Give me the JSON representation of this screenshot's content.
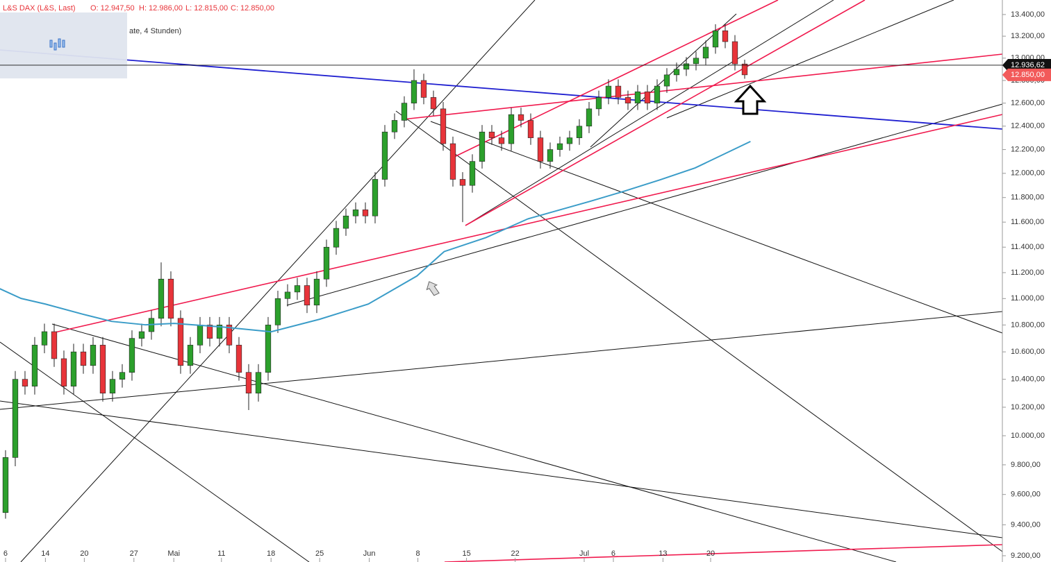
{
  "chart_data": {
    "type": "candlestick",
    "title": "L&S DAX (L&S, Last)",
    "ohlc_header": [
      "O: 12.947,50",
      "H: 12.986,00",
      "L: 12.815,00",
      "C: 12.850,00"
    ],
    "subtitle": "ate, 4 Stunden)",
    "log_scale": true,
    "ylim": [
      9160,
      13536
    ],
    "xlim": [
      -0.57,
      102.5
    ],
    "yticks": [
      {
        "value": 9200,
        "label": "9.200,00"
      },
      {
        "value": 9400,
        "label": "9.400,00"
      },
      {
        "value": 9600,
        "label": "9.600,00"
      },
      {
        "value": 9800,
        "label": "9.800,00"
      },
      {
        "value": 10000,
        "label": "10.000,00"
      },
      {
        "value": 10200,
        "label": "10.200,00"
      },
      {
        "value": 10400,
        "label": "10.400,00"
      },
      {
        "value": 10600,
        "label": "10.600,00"
      },
      {
        "value": 10800,
        "label": "10.800,00"
      },
      {
        "value": 11000,
        "label": "11.000,00"
      },
      {
        "value": 11200,
        "label": "11.200,00"
      },
      {
        "value": 11400,
        "label": "11.400,00"
      },
      {
        "value": 11600,
        "label": "11.600,00"
      },
      {
        "value": 11800,
        "label": "11.800,00"
      },
      {
        "value": 12000,
        "label": "12.000,00"
      },
      {
        "value": 12200,
        "label": "12.200,00"
      },
      {
        "value": 12400,
        "label": "12.400,00"
      },
      {
        "value": 12600,
        "label": "12.600,00"
      },
      {
        "value": 12800,
        "label": "12.800,00"
      },
      {
        "value": 13000,
        "label": "13.000,00"
      },
      {
        "value": 13200,
        "label": "13.200,00"
      },
      {
        "value": 13400,
        "label": "13.400,00"
      }
    ],
    "xticks": [
      {
        "value": 0,
        "label": "6"
      },
      {
        "value": 4.1,
        "label": "14"
      },
      {
        "value": 8.1,
        "label": "20"
      },
      {
        "value": 13.2,
        "label": "27"
      },
      {
        "value": 17.3,
        "label": "Mai"
      },
      {
        "value": 22.2,
        "label": "11"
      },
      {
        "value": 27.3,
        "label": "18"
      },
      {
        "value": 32.3,
        "label": "25"
      },
      {
        "value": 37.4,
        "label": "Jun"
      },
      {
        "value": 42.4,
        "label": "8"
      },
      {
        "value": 47.4,
        "label": "15"
      },
      {
        "value": 52.4,
        "label": "22"
      },
      {
        "value": 59.5,
        "label": "Jul"
      },
      {
        "value": 62.5,
        "label": "6"
      },
      {
        "value": 67.6,
        "label": "13"
      },
      {
        "value": 72.5,
        "label": "20"
      }
    ],
    "up_color": "#2ca02c",
    "down_color": "#e8343a",
    "candles": [
      [
        9480,
        9900,
        9440,
        9850
      ],
      [
        9850,
        10460,
        9790,
        10400
      ],
      [
        10400,
        10460,
        10290,
        10350
      ],
      [
        10350,
        10710,
        10290,
        10650
      ],
      [
        10650,
        10810,
        10590,
        10750
      ],
      [
        10750,
        10810,
        10490,
        10550
      ],
      [
        10550,
        10610,
        10290,
        10350
      ],
      [
        10350,
        10660,
        10290,
        10600
      ],
      [
        10600,
        10660,
        10440,
        10500
      ],
      [
        10500,
        10710,
        10440,
        10650
      ],
      [
        10650,
        10710,
        10240,
        10300
      ],
      [
        10300,
        10460,
        10240,
        10400
      ],
      [
        10400,
        10510,
        10340,
        10450
      ],
      [
        10450,
        10760,
        10390,
        10700
      ],
      [
        10700,
        10810,
        10640,
        10750
      ],
      [
        10750,
        10910,
        10690,
        10850
      ],
      [
        10850,
        11280,
        10790,
        11150
      ],
      [
        11150,
        11210,
        10790,
        10850
      ],
      [
        10850,
        10910,
        10440,
        10500
      ],
      [
        10500,
        10710,
        10440,
        10650
      ],
      [
        10650,
        10860,
        10590,
        10800
      ],
      [
        10800,
        10860,
        10640,
        10700
      ],
      [
        10700,
        10860,
        10640,
        10800
      ],
      [
        10800,
        10860,
        10590,
        10650
      ],
      [
        10650,
        10710,
        10390,
        10450
      ],
      [
        10450,
        10510,
        10180,
        10300
      ],
      [
        10300,
        10510,
        10240,
        10450
      ],
      [
        10450,
        10860,
        10390,
        10800
      ],
      [
        10800,
        11060,
        10740,
        11000
      ],
      [
        11000,
        11110,
        10940,
        11050
      ],
      [
        11050,
        11160,
        10990,
        11100
      ],
      [
        11100,
        11160,
        10890,
        10950
      ],
      [
        10950,
        11210,
        10890,
        11150
      ],
      [
        11150,
        11460,
        11090,
        11400
      ],
      [
        11400,
        11610,
        11340,
        11550
      ],
      [
        11550,
        11710,
        11490,
        11650
      ],
      [
        11650,
        11760,
        11590,
        11700
      ],
      [
        11700,
        11760,
        11590,
        11650
      ],
      [
        11650,
        12010,
        11590,
        11950
      ],
      [
        11950,
        12410,
        11890,
        12350
      ],
      [
        12350,
        12510,
        12290,
        12450
      ],
      [
        12450,
        12660,
        12390,
        12600
      ],
      [
        12600,
        12900,
        12540,
        12800
      ],
      [
        12800,
        12860,
        12590,
        12650
      ],
      [
        12650,
        12710,
        12490,
        12550
      ],
      [
        12550,
        12610,
        12190,
        12250
      ],
      [
        12250,
        12310,
        11890,
        11950
      ],
      [
        11950,
        12010,
        11600,
        11900
      ],
      [
        11900,
        12160,
        11840,
        12100
      ],
      [
        12100,
        12410,
        12040,
        12350
      ],
      [
        12350,
        12410,
        12240,
        12300
      ],
      [
        12300,
        12360,
        12190,
        12250
      ],
      [
        12250,
        12560,
        12190,
        12500
      ],
      [
        12500,
        12560,
        12390,
        12450
      ],
      [
        12450,
        12510,
        12240,
        12300
      ],
      [
        12300,
        12360,
        12040,
        12100
      ],
      [
        12100,
        12260,
        12040,
        12200
      ],
      [
        12200,
        12310,
        12140,
        12250
      ],
      [
        12250,
        12360,
        12190,
        12300
      ],
      [
        12300,
        12460,
        12240,
        12400
      ],
      [
        12400,
        12610,
        12340,
        12550
      ],
      [
        12550,
        12710,
        12490,
        12650
      ],
      [
        12650,
        12810,
        12590,
        12750
      ],
      [
        12750,
        12810,
        12590,
        12650
      ],
      [
        12650,
        12710,
        12540,
        12600
      ],
      [
        12600,
        12760,
        12540,
        12700
      ],
      [
        12700,
        12760,
        12540,
        12600
      ],
      [
        12600,
        12810,
        12540,
        12750
      ],
      [
        12750,
        12910,
        12690,
        12850
      ],
      [
        12850,
        12960,
        12790,
        12900
      ],
      [
        12900,
        13010,
        12840,
        12950
      ],
      [
        12950,
        13060,
        12890,
        13000
      ],
      [
        13000,
        13160,
        12940,
        13100
      ],
      [
        13100,
        13310,
        13040,
        13250
      ],
      [
        13250,
        13310,
        13090,
        13150
      ],
      [
        13150,
        13210,
        12890,
        12947.5
      ],
      [
        12947.5,
        12986,
        12815,
        12850
      ]
    ],
    "moving_average": {
      "color": "#3a9cc8",
      "x": [
        -0.6,
        1.6,
        4.1,
        8.0,
        10.9,
        14.4,
        17.3,
        22.3,
        27.3,
        32.3,
        37.3,
        42.3,
        45.1,
        49.4,
        53.7,
        60.1,
        63.7,
        67.3,
        70.9,
        76.6
      ],
      "values": [
        11076,
        11001,
        10958,
        10880,
        10827,
        10801,
        10812,
        10785,
        10749,
        10843,
        10958,
        11174,
        11365,
        11476,
        11626,
        11769,
        11854,
        11946,
        12045,
        12269
      ]
    },
    "price_markers": [
      {
        "value": 12936.62,
        "label": "12.936,62",
        "color": "#111111"
      },
      {
        "value": 12850,
        "label": "12.850,00",
        "color": "#f25a5a"
      }
    ]
  }
}
